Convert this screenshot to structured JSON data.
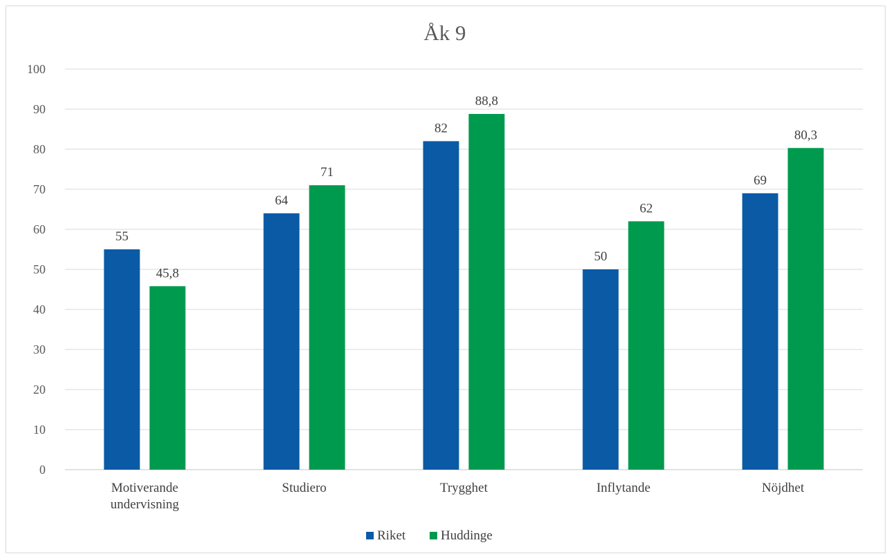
{
  "chart_data": {
    "type": "bar",
    "title": "Åk 9",
    "categories": [
      [
        "Motiverande",
        "undervisning"
      ],
      [
        "Studiero"
      ],
      [
        "Trygghet"
      ],
      [
        "Inflytande"
      ],
      [
        "Nöjdhet"
      ]
    ],
    "series": [
      {
        "name": "Riket",
        "color": "#0a5aa6",
        "values": [
          55,
          64,
          82,
          50,
          69
        ],
        "labels": [
          "55",
          "64",
          "82",
          "50",
          "69"
        ]
      },
      {
        "name": "Huddinge",
        "color": "#009a4e",
        "values": [
          45.8,
          71,
          88.8,
          62,
          80.3
        ],
        "labels": [
          "45,8",
          "71",
          "88,8",
          "62",
          "80,3"
        ]
      }
    ],
    "ylim": [
      0,
      100
    ],
    "yticks": [
      0,
      10,
      20,
      30,
      40,
      50,
      60,
      70,
      80,
      90,
      100
    ],
    "grid": true,
    "legend_position": "bottom"
  }
}
